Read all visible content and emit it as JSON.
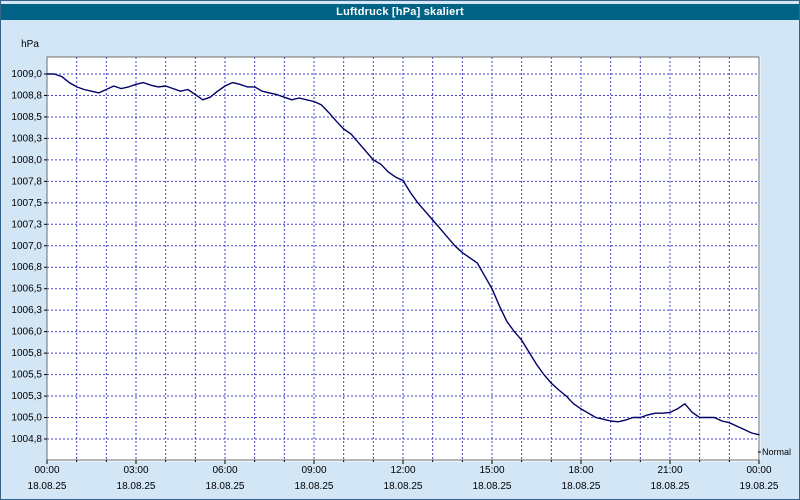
{
  "window": {
    "title": "Luftdruck [hPa] skaliert"
  },
  "colors": {
    "titlebar_bg": "#006285",
    "window_bg": "#d3e6f6",
    "plot_bg": "#ffffff",
    "grid": "#4343cf",
    "line": "#000066",
    "axis_text": "#000000",
    "frame": "#6e6e6e"
  },
  "chart_data": {
    "type": "line",
    "title": "Luftdruck [hPa] skaliert",
    "ylabel_unit": "hPa",
    "normal_label": "Normal",
    "grid": true,
    "grid_style": "dashed",
    "legend_position": "none",
    "ylim": [
      1004.5,
      1009.2
    ],
    "xlim_hours": [
      0,
      24
    ],
    "y_ticks": [
      {
        "value": 1009.0,
        "label": "1009,0"
      },
      {
        "value": 1008.75,
        "label": "1008,8"
      },
      {
        "value": 1008.5,
        "label": "1008,5"
      },
      {
        "value": 1008.25,
        "label": "1008,3"
      },
      {
        "value": 1008.0,
        "label": "1008,0"
      },
      {
        "value": 1007.75,
        "label": "1007,8"
      },
      {
        "value": 1007.5,
        "label": "1007,5"
      },
      {
        "value": 1007.25,
        "label": "1007,3"
      },
      {
        "value": 1007.0,
        "label": "1007,0"
      },
      {
        "value": 1006.75,
        "label": "1006,8"
      },
      {
        "value": 1006.5,
        "label": "1006,5"
      },
      {
        "value": 1006.25,
        "label": "1006,3"
      },
      {
        "value": 1006.0,
        "label": "1006,0"
      },
      {
        "value": 1005.75,
        "label": "1005,8"
      },
      {
        "value": 1005.5,
        "label": "1005,5"
      },
      {
        "value": 1005.25,
        "label": "1005,3"
      },
      {
        "value": 1005.0,
        "label": "1005,0"
      },
      {
        "value": 1004.75,
        "label": "1004,8"
      }
    ],
    "x_ticks": [
      {
        "hour": 0,
        "time": "00:00",
        "date": "18.08.25"
      },
      {
        "hour": 3,
        "time": "03:00",
        "date": "18.08.25"
      },
      {
        "hour": 6,
        "time": "06:00",
        "date": "18.08.25"
      },
      {
        "hour": 9,
        "time": "09:00",
        "date": "18.08.25"
      },
      {
        "hour": 12,
        "time": "12:00",
        "date": "18.08.25"
      },
      {
        "hour": 15,
        "time": "15:00",
        "date": "18.08.25"
      },
      {
        "hour": 18,
        "time": "18:00",
        "date": "18.08.25"
      },
      {
        "hour": 21,
        "time": "21:00",
        "date": "18.08.25"
      },
      {
        "hour": 24,
        "time": "00:00",
        "date": "19.08.25"
      }
    ],
    "series": [
      {
        "name": "Luftdruck",
        "color": "#000066",
        "points": [
          [
            0,
            1009.0
          ],
          [
            0.25,
            1009.0
          ],
          [
            0.5,
            1008.97
          ],
          [
            0.75,
            1008.9
          ],
          [
            1,
            1008.85
          ],
          [
            1.25,
            1008.82
          ],
          [
            1.5,
            1008.8
          ],
          [
            1.75,
            1008.78
          ],
          [
            2,
            1008.82
          ],
          [
            2.25,
            1008.86
          ],
          [
            2.5,
            1008.83
          ],
          [
            2.75,
            1008.85
          ],
          [
            3,
            1008.88
          ],
          [
            3.25,
            1008.9
          ],
          [
            3.5,
            1008.87
          ],
          [
            3.75,
            1008.85
          ],
          [
            4,
            1008.86
          ],
          [
            4.25,
            1008.83
          ],
          [
            4.5,
            1008.8
          ],
          [
            4.75,
            1008.82
          ],
          [
            5,
            1008.76
          ],
          [
            5.25,
            1008.7
          ],
          [
            5.5,
            1008.73
          ],
          [
            5.75,
            1008.8
          ],
          [
            6,
            1008.86
          ],
          [
            6.25,
            1008.9
          ],
          [
            6.5,
            1008.88
          ],
          [
            6.75,
            1008.85
          ],
          [
            7,
            1008.85
          ],
          [
            7.25,
            1008.8
          ],
          [
            7.5,
            1008.78
          ],
          [
            7.75,
            1008.76
          ],
          [
            8,
            1008.73
          ],
          [
            8.25,
            1008.7
          ],
          [
            8.5,
            1008.72
          ],
          [
            8.75,
            1008.7
          ],
          [
            9,
            1008.68
          ],
          [
            9.25,
            1008.64
          ],
          [
            9.5,
            1008.55
          ],
          [
            9.75,
            1008.45
          ],
          [
            10,
            1008.36
          ],
          [
            10.25,
            1008.3
          ],
          [
            10.5,
            1008.2
          ],
          [
            10.75,
            1008.1
          ],
          [
            11,
            1008.0
          ],
          [
            11.25,
            1007.95
          ],
          [
            11.5,
            1007.86
          ],
          [
            11.75,
            1007.8
          ],
          [
            12,
            1007.76
          ],
          [
            12.25,
            1007.62
          ],
          [
            12.5,
            1007.5
          ],
          [
            12.75,
            1007.4
          ],
          [
            13,
            1007.3
          ],
          [
            13.25,
            1007.2
          ],
          [
            13.5,
            1007.1
          ],
          [
            13.75,
            1007.0
          ],
          [
            14,
            1006.92
          ],
          [
            14.25,
            1006.86
          ],
          [
            14.5,
            1006.8
          ],
          [
            14.75,
            1006.65
          ],
          [
            15,
            1006.5
          ],
          [
            15.25,
            1006.3
          ],
          [
            15.5,
            1006.12
          ],
          [
            15.75,
            1006.0
          ],
          [
            16,
            1005.9
          ],
          [
            16.25,
            1005.76
          ],
          [
            16.5,
            1005.62
          ],
          [
            16.75,
            1005.5
          ],
          [
            17,
            1005.4
          ],
          [
            17.25,
            1005.32
          ],
          [
            17.5,
            1005.25
          ],
          [
            17.75,
            1005.16
          ],
          [
            18,
            1005.1
          ],
          [
            18.25,
            1005.05
          ],
          [
            18.5,
            1005.0
          ],
          [
            18.75,
            1004.98
          ],
          [
            19,
            1004.96
          ],
          [
            19.25,
            1004.95
          ],
          [
            19.5,
            1004.97
          ],
          [
            19.75,
            1005.0
          ],
          [
            20,
            1005.0
          ],
          [
            20.25,
            1005.03
          ],
          [
            20.5,
            1005.05
          ],
          [
            20.75,
            1005.05
          ],
          [
            21,
            1005.06
          ],
          [
            21.25,
            1005.1
          ],
          [
            21.5,
            1005.16
          ],
          [
            21.75,
            1005.06
          ],
          [
            22,
            1005.0
          ],
          [
            22.25,
            1005.0
          ],
          [
            22.5,
            1005.0
          ],
          [
            22.75,
            1004.96
          ],
          [
            23,
            1004.94
          ],
          [
            23.25,
            1004.9
          ],
          [
            23.5,
            1004.86
          ],
          [
            23.75,
            1004.82
          ],
          [
            24,
            1004.8
          ]
        ]
      }
    ]
  }
}
